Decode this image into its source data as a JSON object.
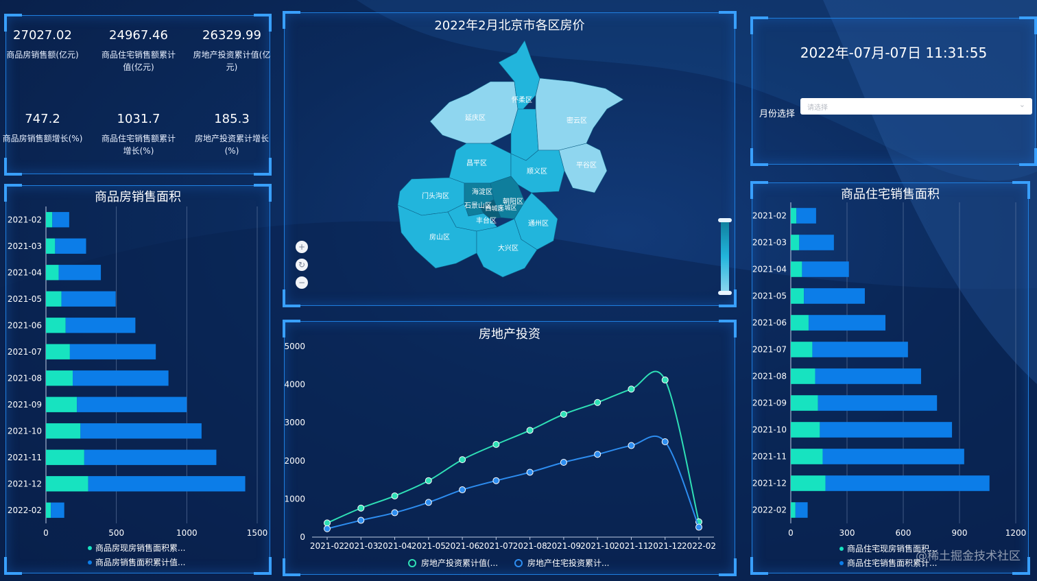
{
  "stats": [
    {
      "value": "27027.02",
      "label": "商品房销售额(亿元)"
    },
    {
      "value": "24967.46",
      "label": "商品住宅销售额累计值(亿元)"
    },
    {
      "value": "26329.99",
      "label": "房地产投资累计值(亿元)"
    },
    {
      "value": "747.2",
      "label": "商品房销售额增长(%)"
    },
    {
      "value": "1031.7",
      "label": "商品住宅销售额累计增长(%)"
    },
    {
      "value": "185.3",
      "label": "房地产投资累计增长(%)"
    }
  ],
  "datetime": "2022年-07月-07日 11:31:55",
  "month_filter": {
    "label": "月份选择",
    "placeholder": "请选择",
    "chevron_icon": "chevron-down-icon"
  },
  "map": {
    "title": "2022年2月北京市各区房价",
    "zoom_icons": [
      "zoom-in-icon",
      "reset-icon",
      "zoom-out-icon"
    ],
    "districts": [
      "怀柔区",
      "延庆区",
      "密云区",
      "昌平区",
      "顺义区",
      "平谷区",
      "门头沟区",
      "海淀区",
      "朝阳区",
      "石景山区",
      "西城区",
      "东城区",
      "丰台区",
      "通州区",
      "房山区",
      "大兴区"
    ],
    "colors": {
      "light": "#8fd6ef",
      "mid": "#22b5dc",
      "dark": "#0f7e9c"
    }
  },
  "chart_data": [
    {
      "type": "bar",
      "title": "商品房销售面积",
      "orientation": "horizontal",
      "stacked": true,
      "categories": [
        "2021-02",
        "2021-03",
        "2021-04",
        "2021-05",
        "2021-06",
        "2021-07",
        "2021-08",
        "2021-09",
        "2021-10",
        "2021-11",
        "2021-12",
        "2022-02"
      ],
      "series": [
        {
          "name": "商品房现房销售面积累...",
          "values": [
            45,
            65,
            90,
            110,
            140,
            170,
            190,
            220,
            245,
            272,
            300,
            35
          ],
          "color": "#17e3c0"
        },
        {
          "name": "商品房销售面积累计值...",
          "values": [
            165,
            285,
            390,
            495,
            635,
            780,
            870,
            1000,
            1105,
            1210,
            1415,
            130
          ],
          "color": "#0c7de8",
          "cumulative_display": true
        }
      ],
      "xlim": [
        0,
        1500
      ],
      "xticks": [
        0,
        500,
        1000,
        1500
      ],
      "legend": "bottom"
    },
    {
      "type": "line",
      "title": "房地产投资",
      "categories": [
        "2021-02",
        "2021-03",
        "2021-04",
        "2021-05",
        "2021-06",
        "2021-07",
        "2021-08",
        "2021-09",
        "2021-10",
        "2021-11",
        "2021-12",
        "2022-02"
      ],
      "series": [
        {
          "name": "房地产投资累计值(...",
          "values": [
            370,
            760,
            1080,
            1480,
            2030,
            2430,
            2800,
            3220,
            3530,
            3880,
            4120,
            400
          ],
          "color": "#2fe0b6"
        },
        {
          "name": "房地产住宅投资累计...",
          "values": [
            220,
            440,
            640,
            910,
            1240,
            1480,
            1700,
            1960,
            2170,
            2400,
            2500,
            260
          ],
          "color": "#2d8df0"
        }
      ],
      "ylim": [
        0,
        5000
      ],
      "yticks": [
        0,
        1000,
        2000,
        3000,
        4000,
        5000
      ],
      "smooth": true,
      "legend": "bottom"
    },
    {
      "type": "bar",
      "title": "商品住宅销售面积",
      "orientation": "horizontal",
      "stacked": true,
      "categories": [
        "2021-02",
        "2021-03",
        "2021-04",
        "2021-05",
        "2021-06",
        "2021-07",
        "2021-08",
        "2021-09",
        "2021-10",
        "2021-11",
        "2021-12",
        "2022-02"
      ],
      "series": [
        {
          "name": "商品住宅现房销售面积...",
          "values": [
            30,
            45,
            60,
            70,
            95,
            115,
            130,
            145,
            155,
            170,
            185,
            25
          ],
          "color": "#17e3c0"
        },
        {
          "name": "商品住宅销售面积累计...",
          "values": [
            135,
            230,
            310,
            395,
            505,
            625,
            695,
            780,
            860,
            925,
            1060,
            90
          ],
          "color": "#0c7de8",
          "cumulative_display": true
        }
      ],
      "xlim": [
        0,
        1200
      ],
      "xticks": [
        0,
        300,
        600,
        900,
        1200
      ],
      "legend": "bottom"
    }
  ],
  "watermark": "@稀土掘金技术社区"
}
